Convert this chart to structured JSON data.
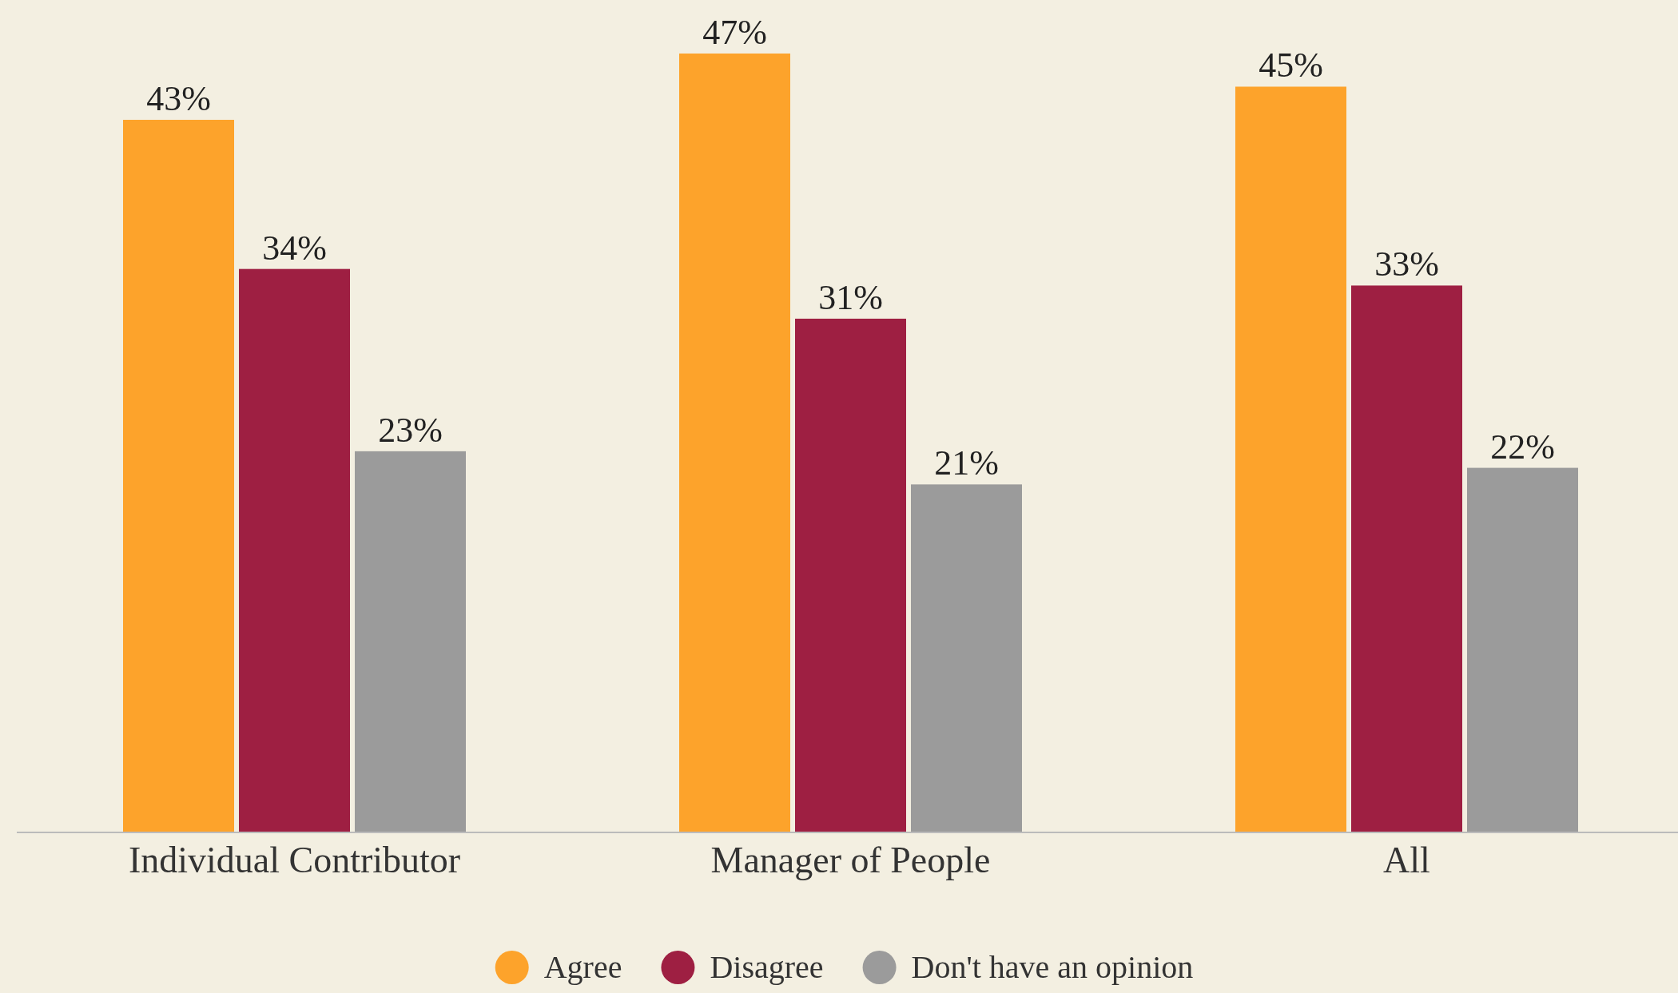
{
  "chart_data": {
    "type": "bar",
    "categories": [
      "Individual Contributor",
      "Manager of People",
      "All"
    ],
    "series": [
      {
        "name": "Agree",
        "color": "#fda32b",
        "values": [
          43,
          47,
          45
        ],
        "value_labels": [
          "43%",
          "47%",
          "45%"
        ]
      },
      {
        "name": "Disagree",
        "color": "#9e1f42",
        "values": [
          34,
          31,
          33
        ],
        "value_labels": [
          "34%",
          "31%",
          "33%"
        ]
      },
      {
        "name": "Don't have an opinion",
        "color": "#9b9b9b",
        "values": [
          23,
          21,
          22
        ],
        "value_labels": [
          "23%",
          "21%",
          "22%"
        ]
      }
    ],
    "legend": "bottom"
  }
}
